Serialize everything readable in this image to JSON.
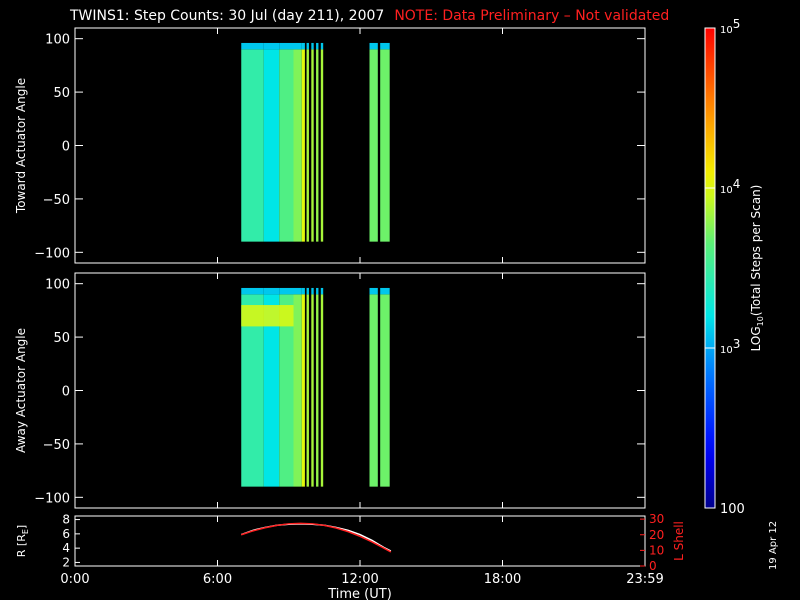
{
  "header": {
    "title": "TWINS1: Step Counts: 30 Jul (day 211), 2007",
    "note": "NOTE: Data Preliminary – Not validated"
  },
  "footer": {
    "date_stamp": "19 Apr 12"
  },
  "colors": {
    "background": "#000000",
    "axis": "#ffffff",
    "note": "#ff2020",
    "l_shell_line": "#ff2020",
    "r_line": "#ffffff"
  },
  "chart_data": [
    {
      "type": "heatmap",
      "panel": "toward",
      "ylabel": "Toward Actuator Angle",
      "ylim": [
        -110,
        110
      ],
      "yticks": [
        100,
        50,
        0,
        -50,
        -100
      ],
      "ytick_labels": [
        "100",
        "50",
        "0",
        "−50",
        "−100"
      ],
      "xlim": [
        0,
        24
      ],
      "angle_range": [
        -90,
        90
      ],
      "blocks": [
        {
          "t0": 7.0,
          "t1": 7.95,
          "log10": 3.45
        },
        {
          "t0": 7.95,
          "t1": 8.6,
          "log10": 3.2
        },
        {
          "t0": 8.6,
          "t1": 9.2,
          "log10": 3.6
        },
        {
          "t0": 9.2,
          "t1": 9.55,
          "log10": 3.75
        },
        {
          "t0": 9.55,
          "t1": 9.68,
          "log10": 4.0
        },
        {
          "t0": 9.75,
          "t1": 9.85,
          "log10": 3.85
        },
        {
          "t0": 9.95,
          "t1": 10.05,
          "log10": 3.85
        },
        {
          "t0": 10.15,
          "t1": 10.25,
          "log10": 3.8
        },
        {
          "t0": 10.35,
          "t1": 10.45,
          "log10": 3.85
        },
        {
          "t0": 12.4,
          "t1": 12.75,
          "log10": 3.7
        },
        {
          "t0": 12.85,
          "t1": 13.25,
          "log10": 3.7
        }
      ],
      "top_band_log10": 3.1,
      "highlight_band": null
    },
    {
      "type": "heatmap",
      "panel": "away",
      "ylabel": "Away Actuator Angle",
      "ylim": [
        -110,
        110
      ],
      "yticks": [
        100,
        50,
        0,
        -50,
        -100
      ],
      "ytick_labels": [
        "100",
        "50",
        "0",
        "−50",
        "−100"
      ],
      "xlim": [
        0,
        24
      ],
      "angle_range": [
        -90,
        90
      ],
      "blocks": [
        {
          "t0": 7.0,
          "t1": 7.95,
          "log10": 3.45
        },
        {
          "t0": 7.95,
          "t1": 8.6,
          "log10": 3.2
        },
        {
          "t0": 8.6,
          "t1": 9.2,
          "log10": 3.6
        },
        {
          "t0": 9.2,
          "t1": 9.55,
          "log10": 3.75
        },
        {
          "t0": 9.55,
          "t1": 9.68,
          "log10": 4.0
        },
        {
          "t0": 9.75,
          "t1": 9.85,
          "log10": 3.85
        },
        {
          "t0": 9.95,
          "t1": 10.05,
          "log10": 3.85
        },
        {
          "t0": 10.15,
          "t1": 10.25,
          "log10": 3.8
        },
        {
          "t0": 10.35,
          "t1": 10.45,
          "log10": 3.85
        },
        {
          "t0": 12.4,
          "t1": 12.75,
          "log10": 3.7
        },
        {
          "t0": 12.85,
          "t1": 13.25,
          "log10": 3.7
        }
      ],
      "top_band_log10": 3.1,
      "highlight_band": {
        "a0": 60,
        "a1": 80,
        "t0": 7.0,
        "t1": 9.2,
        "log10": 4.0
      }
    },
    {
      "type": "line",
      "panel": "orbit",
      "ylabel": "R [Rₑ]",
      "ylabel_main": "R [R",
      "ylabel_sub": "E",
      "ylabel_tail": "]",
      "ylim": [
        1.5,
        8.5
      ],
      "yticks": [
        8,
        6,
        4,
        2
      ],
      "ytick_labels": [
        "8",
        "6",
        "4",
        "2"
      ],
      "y2label": "L Shell",
      "y2lim": [
        0,
        32
      ],
      "y2ticks": [
        30,
        20,
        10,
        0
      ],
      "y2tick_labels": [
        "30",
        "20",
        "10",
        "0"
      ],
      "xlim": [
        0,
        24
      ],
      "xticks": [
        0,
        6,
        12,
        18,
        24
      ],
      "xtick_labels": [
        "0:00",
        "6:00",
        "12:00",
        "18:00",
        "23:59"
      ],
      "xlabel": "Time (UT)",
      "series": [
        {
          "axis": "left",
          "color": "#ffffff",
          "x": [
            7.0,
            7.5,
            8.0,
            8.5,
            9.0,
            9.5,
            10.0,
            10.5,
            11.0,
            11.5,
            12.0,
            12.5,
            13.0,
            13.3
          ],
          "y": [
            5.9,
            6.5,
            6.9,
            7.2,
            7.35,
            7.4,
            7.35,
            7.2,
            6.9,
            6.5,
            5.9,
            5.1,
            4.1,
            3.6
          ]
        },
        {
          "axis": "right",
          "color": "#ff2020",
          "x": [
            7.0,
            7.5,
            8.0,
            8.5,
            9.0,
            9.5,
            10.0,
            10.5,
            11.0,
            11.5,
            12.0,
            12.5,
            13.0,
            13.3
          ],
          "y": [
            20,
            22.5,
            24.5,
            26,
            27,
            27.3,
            27,
            26,
            24.3,
            22,
            19,
            15.5,
            11.5,
            9
          ]
        }
      ]
    },
    {
      "type": "colorbar",
      "label_prefix": "LOG",
      "label_sub": "10",
      "label_suffix": "(Total Steps per Scan)",
      "range_log10": [
        2,
        5
      ],
      "ticks": [
        {
          "log10": 5,
          "base": "10",
          "exp": "5"
        },
        {
          "log10": 4,
          "base": "10",
          "exp": "4"
        },
        {
          "log10": 3,
          "base": "10",
          "exp": "3"
        },
        {
          "log10": 2,
          "base": "100",
          "exp": ""
        }
      ]
    }
  ]
}
